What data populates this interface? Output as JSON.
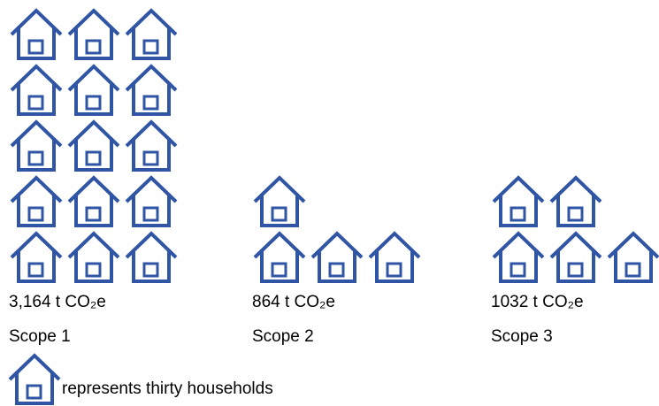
{
  "chart_data": {
    "type": "pictogram",
    "categories": [
      "Scope 1",
      "Scope 2",
      "Scope 3"
    ],
    "values": [
      3164,
      864,
      1032
    ],
    "value_labels": [
      "3,164 t CO₂e",
      "864 t CO₂e",
      "1032 t CO₂e"
    ],
    "icon_counts": [
      15,
      4,
      5
    ],
    "color": "#2f55a4",
    "legend": "represents thirty households"
  }
}
